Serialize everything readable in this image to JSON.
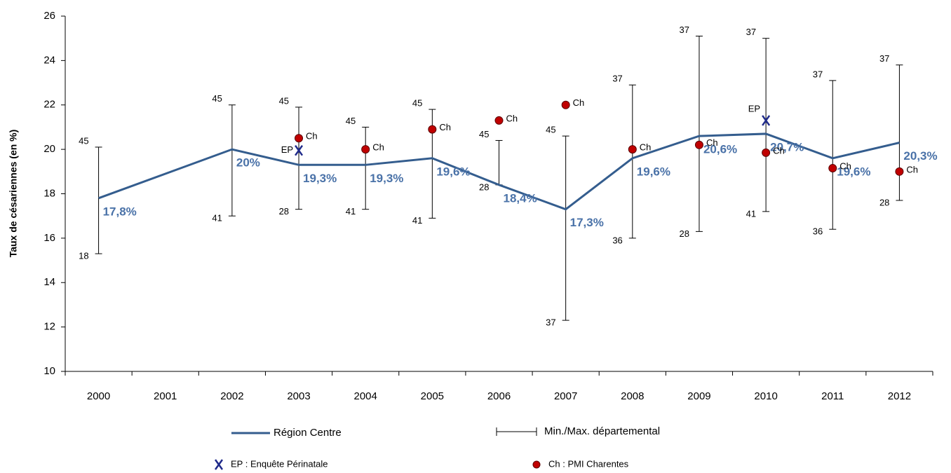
{
  "chart_data": {
    "type": "line",
    "y_axis_label": "Taux de césariennes  (en %)",
    "categories": [
      "2000",
      "2001",
      "2002",
      "2003",
      "2004",
      "2005",
      "2006",
      "2007",
      "2008",
      "2009",
      "2010",
      "2011",
      "2012"
    ],
    "ylim": [
      10,
      26
    ],
    "yticks": [
      10,
      12,
      14,
      16,
      18,
      20,
      22,
      24,
      26
    ],
    "series": [
      {
        "name": "Région Centre",
        "color": "#345d8e",
        "x": [
          "2000",
          "2002",
          "2003",
          "2004",
          "2005",
          "2006",
          "2007",
          "2008",
          "2009",
          "2010",
          "2011",
          "2012"
        ],
        "values": [
          17.8,
          20,
          19.3,
          19.3,
          19.6,
          18.4,
          17.3,
          19.6,
          20.6,
          20.7,
          19.6,
          20.3
        ],
        "value_labels": [
          "17,8%",
          "20%",
          "19,3%",
          "19,3%",
          "19,6%",
          "18,4%",
          "17,3%",
          "19,6%",
          "20,6%",
          "20,7%",
          "19,6%",
          "20,3%"
        ],
        "label_color": "#4a72a8"
      }
    ],
    "error_bars": {
      "name": "Min./Max. départemental",
      "color": "#000000",
      "x": [
        "2000",
        "2002",
        "2003",
        "2004",
        "2005",
        "2006",
        "2007",
        "2008",
        "2009",
        "2010",
        "2011",
        "2012"
      ],
      "min": [
        15.3,
        17.0,
        17.3,
        17.3,
        16.9,
        18.4,
        12.3,
        16.0,
        16.3,
        17.2,
        16.4,
        17.7
      ],
      "max": [
        20.1,
        22.0,
        21.9,
        21.0,
        21.8,
        20.4,
        20.6,
        22.9,
        25.1,
        25.0,
        23.1,
        23.8
      ],
      "min_labels": [
        "18",
        "41",
        "28",
        "41",
        "41",
        "28",
        "37",
        "36",
        "28",
        "41",
        "36",
        "28"
      ],
      "max_labels": [
        "45",
        "45",
        "45",
        "45",
        "45",
        "45",
        "45",
        "37",
        "37",
        "37",
        "37",
        "37"
      ]
    },
    "points": [
      {
        "name": "EP : Enquête Périnatale",
        "marker": "x",
        "marker_label": "EP",
        "color": "#1f2a8a",
        "x": [
          "2003",
          "2010"
        ],
        "values": [
          19.95,
          21.3
        ]
      },
      {
        "name": "Ch : PMI Charentes",
        "marker": "dot",
        "marker_label": "Ch",
        "color": "#c00000",
        "x": [
          "2003",
          "2004",
          "2005",
          "2006",
          "2007",
          "2008",
          "2009",
          "2010",
          "2011",
          "2012"
        ],
        "values": [
          20.5,
          20.0,
          20.9,
          21.3,
          22.0,
          20.0,
          20.2,
          19.85,
          19.15,
          19.0
        ]
      }
    ]
  }
}
